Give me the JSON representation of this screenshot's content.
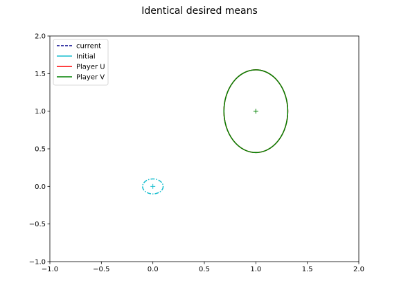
{
  "chart_data": {
    "type": "line",
    "title": "Identical desired means",
    "xlabel": "",
    "ylabel": "",
    "xlim": [
      -1.0,
      2.0
    ],
    "ylim": [
      -1.0,
      2.0
    ],
    "x_ticks": [
      -1.0,
      -0.5,
      0.0,
      0.5,
      1.0,
      1.5,
      2.0
    ],
    "x_tick_labels": [
      "−1.0",
      "−0.5",
      "0.0",
      "0.5",
      "1.0",
      "1.5",
      "2.0"
    ],
    "y_ticks": [
      -1.0,
      -0.5,
      0.0,
      0.5,
      1.0,
      1.5,
      2.0
    ],
    "y_tick_labels": [
      "−1.0",
      "−0.5",
      "0.0",
      "0.5",
      "1.0",
      "1.5",
      "2.0"
    ],
    "grid": false,
    "legend_position": "upper-left",
    "legend": [
      {
        "label": "current",
        "color": "#00008b",
        "style": "dashed"
      },
      {
        "label": "Initial",
        "color": "#17becf",
        "style": "solid"
      },
      {
        "label": "Player U",
        "color": "#ff0000",
        "style": "solid"
      },
      {
        "label": "Player V",
        "color": "#008000",
        "style": "solid"
      }
    ],
    "series": [
      {
        "kind": "ellipse",
        "color": "#17becf",
        "style": "dashdot",
        "center": [
          0.0,
          0.0
        ],
        "rx": 0.1,
        "ry": 0.1
      },
      {
        "kind": "ellipse",
        "color": "#ff0000",
        "style": "solid",
        "center": [
          1.0,
          1.0
        ],
        "rx": 0.31,
        "ry": 0.55
      },
      {
        "kind": "ellipse",
        "color": "#008000",
        "style": "solid",
        "center": [
          1.0,
          1.0
        ],
        "rx": 0.31,
        "ry": 0.55
      }
    ],
    "markers": [
      {
        "x": 0.0,
        "y": 0.0,
        "symbol": "+",
        "color": "#17becf"
      },
      {
        "x": 1.0,
        "y": 1.0,
        "symbol": "+",
        "color": "#008000"
      }
    ]
  }
}
